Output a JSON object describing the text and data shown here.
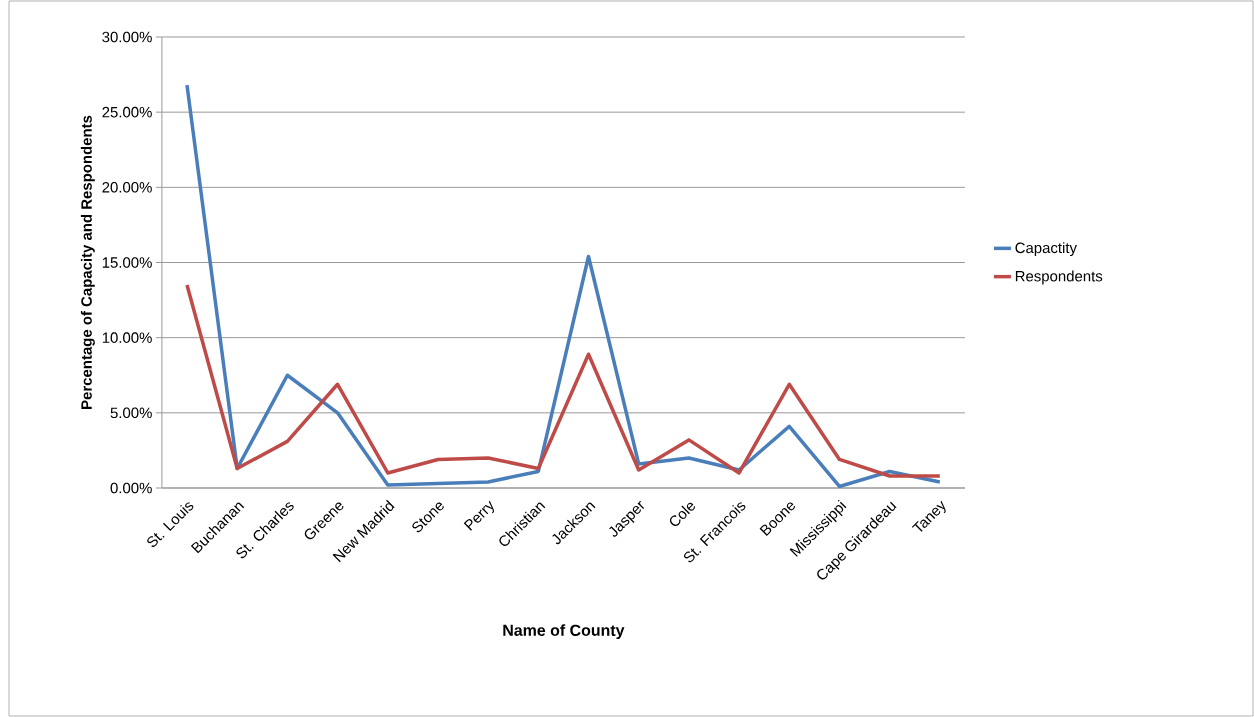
{
  "chart_data": {
    "type": "line",
    "xlabel": "Name of County",
    "ylabel": "Percentage of Capacity and Respondents",
    "categories": [
      "St. Louis",
      "Buchanan",
      "St. Charles",
      "Greene",
      "New Madrid",
      "Stone",
      "Perry",
      "Christian",
      "Jackson",
      "Jasper",
      "Cole",
      "St. Francois",
      "Boone",
      "Mississippi",
      "Cape Girardeau",
      "Taney"
    ],
    "series": [
      {
        "name": "Capactity",
        "color": "#4a7ebb",
        "values": [
          26.8,
          1.3,
          7.5,
          5.0,
          0.2,
          0.3,
          0.4,
          1.1,
          15.4,
          1.6,
          2.0,
          1.2,
          4.1,
          0.1,
          1.1,
          0.4
        ]
      },
      {
        "name": "Respondents",
        "color": "#be4b48",
        "values": [
          13.5,
          1.3,
          3.1,
          6.9,
          1.0,
          1.9,
          2.0,
          1.3,
          8.9,
          1.2,
          3.2,
          1.0,
          6.9,
          1.9,
          0.8,
          0.8
        ]
      }
    ],
    "ylim": [
      0,
      30
    ],
    "yticks": [
      {
        "value": 0,
        "label": "0.00%"
      },
      {
        "value": 5,
        "label": "5.00%"
      },
      {
        "value": 10,
        "label": "10.00%"
      },
      {
        "value": 15,
        "label": "15.00%"
      },
      {
        "value": 20,
        "label": "20.00%"
      },
      {
        "value": 25,
        "label": "25.00%"
      },
      {
        "value": 30,
        "label": "30.00%"
      }
    ],
    "grid": "y",
    "legend": "right",
    "marker": "none",
    "line_style": "solid"
  }
}
